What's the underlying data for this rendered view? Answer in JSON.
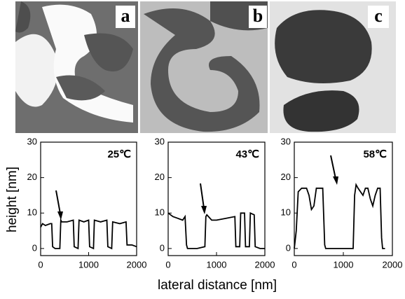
{
  "figure": {
    "panel_labels": [
      "a",
      "b",
      "c"
    ],
    "x_label": "lateral distance  [nm]",
    "y_label": "height  [nm]"
  },
  "chart_data": [
    {
      "type": "line",
      "annotation": "25℃",
      "color": "#000000",
      "x": [
        0,
        40,
        100,
        200,
        230,
        250,
        300,
        400,
        420,
        440,
        550,
        680,
        700,
        780,
        800,
        900,
        1000,
        1020,
        1100,
        1120,
        1250,
        1380,
        1400,
        1480,
        1500,
        1650,
        1780,
        1800,
        1900,
        2000
      ],
      "values": [
        6,
        7,
        6.5,
        7,
        7,
        0.5,
        0,
        0,
        8,
        7.5,
        7.5,
        8,
        0.5,
        0,
        8,
        7.5,
        8,
        0.5,
        0,
        8,
        7.5,
        8,
        0.5,
        0,
        7.5,
        7,
        7.5,
        1,
        1,
        0.5
      ],
      "xlim": [
        0,
        2000
      ],
      "ylim": [
        -2,
        30
      ],
      "xticks": [
        0,
        1000,
        2000
      ],
      "yticks": [
        0,
        10,
        20,
        30
      ]
    },
    {
      "type": "line",
      "annotation": "43℃",
      "color": "#000000",
      "x": [
        0,
        50,
        100,
        200,
        300,
        350,
        380,
        400,
        500,
        600,
        760,
        780,
        800,
        900,
        1000,
        1200,
        1380,
        1400,
        1480,
        1500,
        1580,
        1600,
        1680,
        1700,
        1780,
        1800,
        1900,
        2000
      ],
      "values": [
        10,
        9.5,
        9,
        8.5,
        8,
        9,
        1,
        0,
        0,
        0,
        0.5,
        9,
        9.5,
        8,
        8,
        8.5,
        9,
        0.5,
        0.5,
        10,
        10,
        0.5,
        0.5,
        10,
        9.5,
        0.5,
        0,
        0
      ],
      "xlim": [
        0,
        2000
      ],
      "ylim": [
        -2,
        30
      ],
      "xticks": [
        0,
        1000,
        2000
      ],
      "yticks": [
        0,
        10,
        20,
        30
      ]
    },
    {
      "type": "line",
      "annotation": "58℃",
      "color": "#000000",
      "x": [
        0,
        40,
        80,
        150,
        250,
        300,
        350,
        400,
        450,
        500,
        580,
        620,
        640,
        800,
        1000,
        1200,
        1230,
        1260,
        1300,
        1350,
        1400,
        1450,
        1500,
        1550,
        1600,
        1650,
        1700,
        1750,
        1780,
        1800,
        1850
      ],
      "values": [
        0,
        5,
        16,
        17,
        17,
        15,
        11,
        12,
        17,
        17,
        17,
        1,
        0,
        0,
        0,
        0,
        15,
        18,
        17,
        16,
        15,
        17,
        17,
        14,
        12,
        15,
        17,
        17,
        3,
        0,
        0
      ],
      "xlim": [
        0,
        2000
      ],
      "ylim": [
        -2,
        30
      ],
      "xticks": [
        0,
        1000,
        2000
      ],
      "yticks": [
        0,
        10,
        20,
        30
      ]
    }
  ]
}
